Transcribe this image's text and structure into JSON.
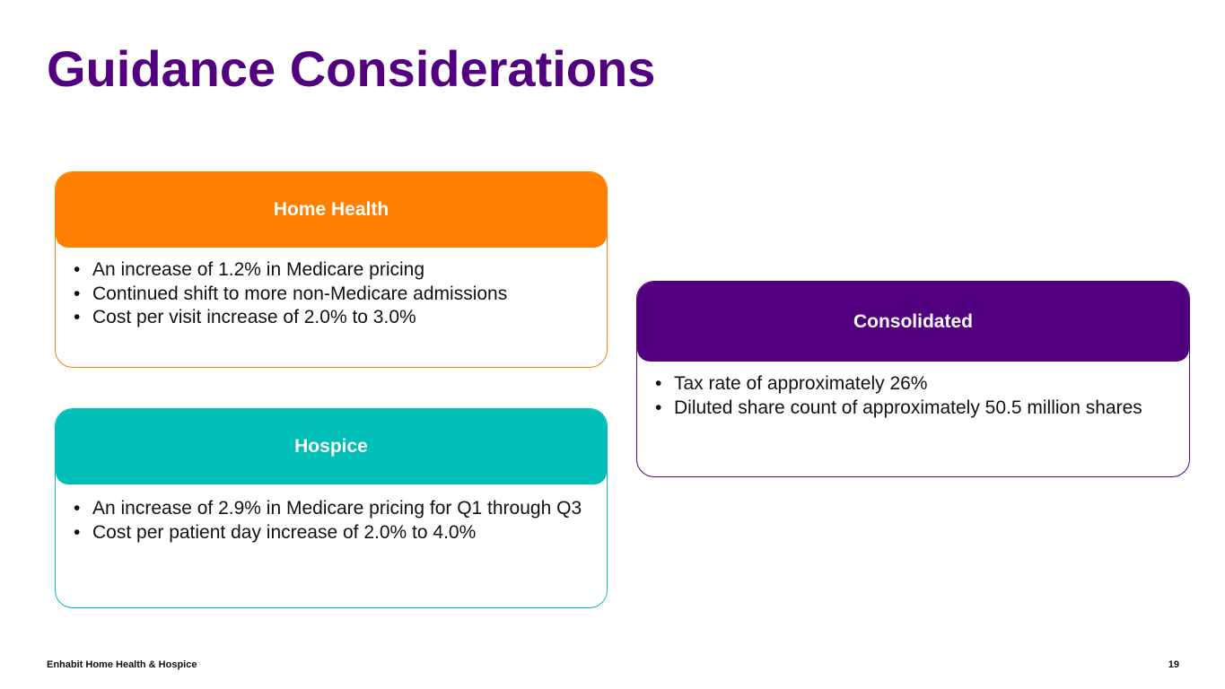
{
  "title": "Guidance Considerations",
  "colors": {
    "title": "#520080",
    "home_health": "#FF8000",
    "hospice": "#00BFB8",
    "consolidated": "#520080"
  },
  "cards": {
    "home_health": {
      "header": "Home Health",
      "bullets": [
        "An increase of 1.2% in Medicare pricing",
        "Continued shift to more non-Medicare admissions",
        "Cost per visit increase of 2.0% to 3.0%"
      ]
    },
    "hospice": {
      "header": "Hospice",
      "bullets": [
        "An increase of 2.9% in Medicare pricing for Q1 through Q3",
        "Cost per patient day increase of 2.0% to 4.0%"
      ]
    },
    "consolidated": {
      "header": "Consolidated",
      "bullets": [
        "Tax rate of approximately 26%",
        "Diluted share count of approximately 50.5 million shares"
      ]
    }
  },
  "footer": {
    "company": "Enhabit Home Health & Hospice",
    "page_number": "19"
  }
}
